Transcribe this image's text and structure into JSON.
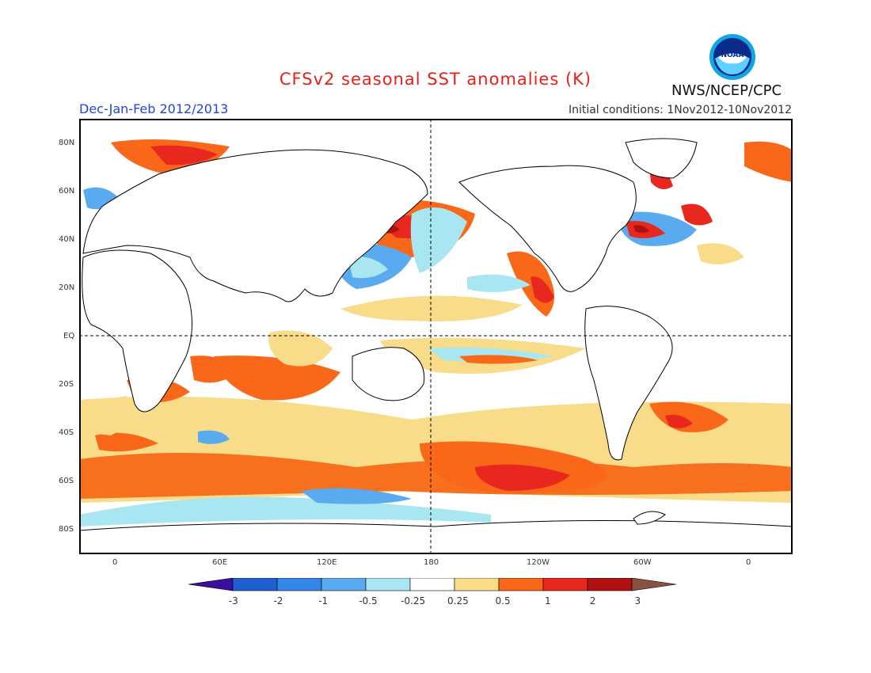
{
  "header": {
    "title": "CFSv2 seasonal SST anomalies (K)",
    "period": "Dec-Jan-Feb 2012/2013",
    "initial_conditions": "Initial conditions: 1Nov2012-10Nov2012",
    "agency": "NWS/NCEP/CPC",
    "logo_text": "NOAA"
  },
  "axes": {
    "lat_labels": [
      "80N",
      "60N",
      "40N",
      "20N",
      "EQ",
      "20S",
      "40S",
      "60S",
      "80S"
    ],
    "lon_labels": [
      "0",
      "60E",
      "120E",
      "180",
      "120W",
      "60W",
      "0"
    ]
  },
  "colorbar": {
    "labels": [
      "-3",
      "-2",
      "-1",
      "-0.5",
      "-0.25",
      "0.25",
      "0.5",
      "1",
      "2",
      "3"
    ],
    "colors": [
      "#3a0fa0",
      "#1f5fd0",
      "#3585e6",
      "#5aaaf0",
      "#a8e6f2",
      "#ffffff",
      "#f9dc8a",
      "#f86818",
      "#e8281e",
      "#b01010",
      "#8a5040"
    ]
  }
}
